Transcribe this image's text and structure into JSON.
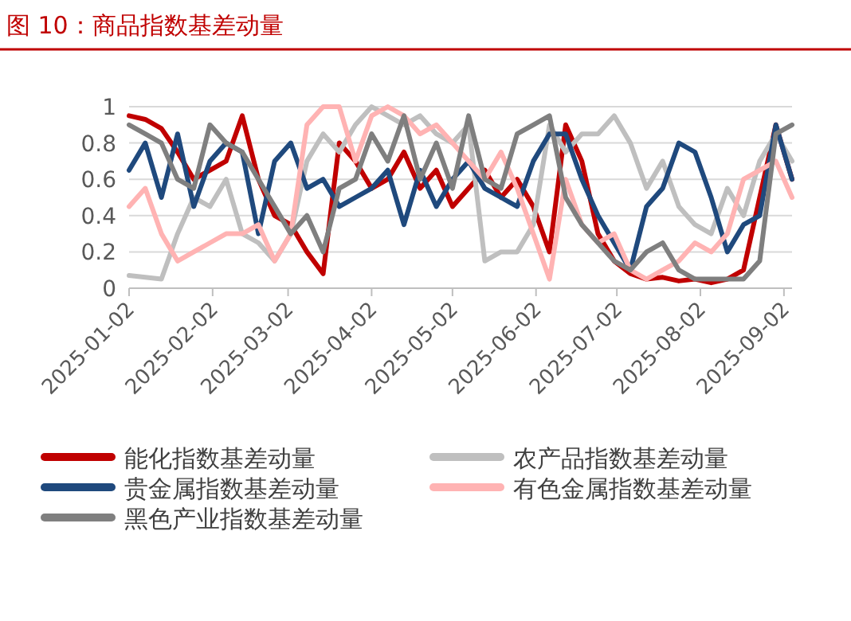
{
  "chart_data": {
    "type": "line",
    "title": "图 10：商品指数基差动量",
    "x": [
      "2025-01-02",
      "2025-01-08",
      "2025-01-14",
      "2025-01-20",
      "2025-01-26",
      "2025-02-01",
      "2025-02-07",
      "2025-02-13",
      "2025-02-19",
      "2025-02-25",
      "2025-03-03",
      "2025-03-09",
      "2025-03-15",
      "2025-03-21",
      "2025-03-27",
      "2025-04-02",
      "2025-04-08",
      "2025-04-14",
      "2025-04-20",
      "2025-04-26",
      "2025-05-02",
      "2025-05-08",
      "2025-05-14",
      "2025-05-20",
      "2025-05-26",
      "2025-06-01",
      "2025-06-07",
      "2025-06-13",
      "2025-06-19",
      "2025-06-25",
      "2025-07-01",
      "2025-07-07",
      "2025-07-13",
      "2025-07-19",
      "2025-07-25",
      "2025-07-31",
      "2025-08-06",
      "2025-08-12",
      "2025-08-18",
      "2025-08-24",
      "2025-08-30",
      "2025-09-05"
    ],
    "series": [
      {
        "name": "能化指数基差动量",
        "color": "#c00000",
        "values": [
          0.95,
          0.93,
          0.88,
          0.75,
          0.6,
          0.65,
          0.7,
          0.95,
          0.6,
          0.4,
          0.35,
          0.2,
          0.08,
          0.8,
          0.7,
          0.55,
          0.6,
          0.75,
          0.55,
          0.65,
          0.45,
          0.55,
          0.65,
          0.5,
          0.6,
          0.45,
          0.2,
          0.9,
          0.7,
          0.3,
          0.15,
          0.08,
          0.05,
          0.06,
          0.04,
          0.05,
          0.03,
          0.05,
          0.1,
          0.5,
          0.9,
          0.6
        ]
      },
      {
        "name": "农产品指数基差动量",
        "color": "#bfbfbf",
        "values": [
          0.07,
          0.06,
          0.05,
          0.3,
          0.5,
          0.45,
          0.6,
          0.3,
          0.25,
          0.15,
          0.3,
          0.7,
          0.85,
          0.75,
          0.9,
          1,
          0.95,
          0.9,
          0.95,
          0.85,
          0.8,
          0.9,
          0.15,
          0.2,
          0.2,
          0.35,
          0.9,
          0.75,
          0.85,
          0.85,
          0.95,
          0.8,
          0.55,
          0.7,
          0.45,
          0.35,
          0.3,
          0.55,
          0.4,
          0.7,
          0.85,
          0.7
        ]
      },
      {
        "name": "贵金属指数基差动量",
        "color": "#1f497d",
        "values": [
          0.65,
          0.8,
          0.5,
          0.85,
          0.45,
          0.7,
          0.8,
          0.75,
          0.3,
          0.7,
          0.8,
          0.55,
          0.6,
          0.45,
          0.5,
          0.55,
          0.65,
          0.35,
          0.65,
          0.45,
          0.6,
          0.7,
          0.55,
          0.5,
          0.45,
          0.7,
          0.85,
          0.85,
          0.6,
          0.4,
          0.25,
          0.1,
          0.45,
          0.55,
          0.8,
          0.75,
          0.5,
          0.2,
          0.35,
          0.4,
          0.9,
          0.6
        ]
      },
      {
        "name": "有色金属指数基差动量",
        "color": "#ffb3b3",
        "values": [
          0.45,
          0.55,
          0.3,
          0.15,
          0.2,
          0.25,
          0.3,
          0.3,
          0.35,
          0.15,
          0.3,
          0.9,
          1,
          1,
          0.7,
          0.95,
          1,
          0.95,
          0.85,
          0.9,
          0.8,
          0.7,
          0.6,
          0.75,
          0.55,
          0.3,
          0.05,
          0.6,
          0.35,
          0.25,
          0.3,
          0.1,
          0.05,
          0.1,
          0.15,
          0.25,
          0.2,
          0.3,
          0.6,
          0.65,
          0.7,
          0.5
        ]
      },
      {
        "name": "黑色产业指数基差动量",
        "color": "#7f7f7f",
        "values": [
          0.9,
          0.85,
          0.8,
          0.6,
          0.55,
          0.9,
          0.8,
          0.75,
          0.6,
          0.45,
          0.3,
          0.4,
          0.2,
          0.55,
          0.6,
          0.85,
          0.7,
          0.95,
          0.6,
          0.8,
          0.55,
          0.95,
          0.6,
          0.55,
          0.85,
          0.9,
          0.95,
          0.5,
          0.35,
          0.25,
          0.15,
          0.1,
          0.2,
          0.25,
          0.1,
          0.05,
          0.05,
          0.05,
          0.05,
          0.15,
          0.85,
          0.9
        ]
      }
    ],
    "xlim": [
      "2025-01-02",
      "2025-09-05"
    ],
    "xticks": [
      "2025-01-02",
      "2025-02-02",
      "2025-03-02",
      "2025-04-02",
      "2025-05-02",
      "2025-06-02",
      "2025-07-02",
      "2025-08-02",
      "2025-09-02"
    ],
    "ylim": [
      0,
      1
    ],
    "yticks": [
      0,
      0.2,
      0.4,
      0.6,
      0.8,
      1
    ],
    "grid": "y",
    "legend": "bottom",
    "marker": "none",
    "line_style": "solid"
  }
}
